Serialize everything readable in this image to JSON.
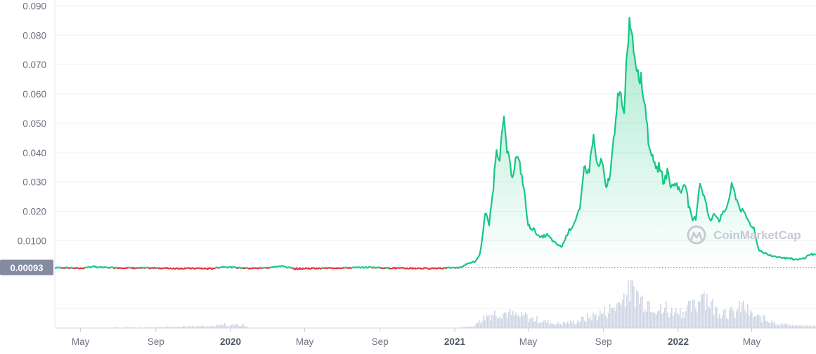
{
  "watermark": {
    "text": "CoinMarketCap",
    "icon": "coinmarketcap-logo-icon"
  },
  "colors": {
    "line_up": "#16c784",
    "line_down": "#ea3943",
    "area_fill": "#16c784",
    "volume": "#cfd6e4",
    "price_tag_bg": "#858ca2",
    "grid": "#eef0f3"
  },
  "current_price_label": "0.00093",
  "chart_data": {
    "type": "area",
    "title": "",
    "xlabel": "",
    "ylabel": "",
    "ylim": [
      -0.003,
      0.092
    ],
    "y_ticks": [
      "0.0100",
      "0.020",
      "0.030",
      "0.040",
      "0.050",
      "0.060",
      "0.070",
      "0.080",
      "0.090"
    ],
    "y_tick_values": [
      0.01,
      0.02,
      0.03,
      0.04,
      0.05,
      0.06,
      0.07,
      0.08,
      0.09
    ],
    "x_range": [
      "2019-03-20",
      "2022-08-14"
    ],
    "x_ticks": [
      {
        "label": "May",
        "date": "2019-05-01",
        "bold": false
      },
      {
        "label": "Sep",
        "date": "2019-09-01",
        "bold": false
      },
      {
        "label": "2020",
        "date": "2020-01-01",
        "bold": true
      },
      {
        "label": "May",
        "date": "2020-05-01",
        "bold": false
      },
      {
        "label": "Sep",
        "date": "2020-09-01",
        "bold": false
      },
      {
        "label": "2021",
        "date": "2021-01-01",
        "bold": true
      },
      {
        "label": "May",
        "date": "2021-05-01",
        "bold": false
      },
      {
        "label": "Sep",
        "date": "2021-09-01",
        "bold": false
      },
      {
        "label": "2022",
        "date": "2022-01-01",
        "bold": true
      },
      {
        "label": "May",
        "date": "2022-05-01",
        "bold": false
      }
    ],
    "grid": true,
    "reference_line": {
      "value": 0.00093,
      "style": "dotted"
    },
    "series": [
      {
        "points": [
          [
            "2019-03-20",
            0.0009
          ],
          [
            "2019-04-10",
            0.0008
          ],
          [
            "2019-05-01",
            0.0006
          ],
          [
            "2019-05-20",
            0.0012
          ],
          [
            "2019-06-10",
            0.0009
          ],
          [
            "2019-07-01",
            0.0008
          ],
          [
            "2019-08-01",
            0.0007
          ],
          [
            "2019-09-01",
            0.0007
          ],
          [
            "2019-10-01",
            0.0006
          ],
          [
            "2019-11-01",
            0.0006
          ],
          [
            "2019-12-01",
            0.0005
          ],
          [
            "2019-12-20",
            0.0012
          ],
          [
            "2020-01-15",
            0.0008
          ],
          [
            "2020-02-10",
            0.0006
          ],
          [
            "2020-03-05",
            0.0009
          ],
          [
            "2020-03-25",
            0.0014
          ],
          [
            "2020-04-15",
            0.0005
          ],
          [
            "2020-05-15",
            0.0006
          ],
          [
            "2020-06-15",
            0.0007
          ],
          [
            "2020-07-15",
            0.0008
          ],
          [
            "2020-08-15",
            0.001
          ],
          [
            "2020-09-15",
            0.0007
          ],
          [
            "2020-10-15",
            0.0006
          ],
          [
            "2020-11-15",
            0.0006
          ],
          [
            "2020-12-15",
            0.0007
          ],
          [
            "2021-01-10",
            0.0009
          ],
          [
            "2021-01-25",
            0.0025
          ],
          [
            "2021-02-05",
            0.003
          ],
          [
            "2021-02-12",
            0.006
          ],
          [
            "2021-02-20",
            0.02
          ],
          [
            "2021-02-26",
            0.015
          ],
          [
            "2021-03-05",
            0.028
          ],
          [
            "2021-03-10",
            0.042
          ],
          [
            "2021-03-15",
            0.038
          ],
          [
            "2021-03-22",
            0.051
          ],
          [
            "2021-03-28",
            0.04
          ],
          [
            "2021-04-05",
            0.032
          ],
          [
            "2021-04-12",
            0.039
          ],
          [
            "2021-04-18",
            0.035
          ],
          [
            "2021-04-24",
            0.028
          ],
          [
            "2021-05-01",
            0.015
          ],
          [
            "2021-05-10",
            0.014
          ],
          [
            "2021-05-20",
            0.011
          ],
          [
            "2021-06-01",
            0.012
          ],
          [
            "2021-06-15",
            0.009
          ],
          [
            "2021-06-25",
            0.008
          ],
          [
            "2021-07-05",
            0.013
          ],
          [
            "2021-07-15",
            0.016
          ],
          [
            "2021-07-25",
            0.021
          ],
          [
            "2021-08-01",
            0.036
          ],
          [
            "2021-08-08",
            0.033
          ],
          [
            "2021-08-15",
            0.046
          ],
          [
            "2021-08-22",
            0.035
          ],
          [
            "2021-08-30",
            0.037
          ],
          [
            "2021-09-05",
            0.027
          ],
          [
            "2021-09-12",
            0.033
          ],
          [
            "2021-09-18",
            0.045
          ],
          [
            "2021-09-22",
            0.056
          ],
          [
            "2021-09-28",
            0.06
          ],
          [
            "2021-10-04",
            0.052
          ],
          [
            "2021-10-10",
            0.078
          ],
          [
            "2021-10-15",
            0.086
          ],
          [
            "2021-10-20",
            0.076
          ],
          [
            "2021-10-25",
            0.07
          ],
          [
            "2021-10-30",
            0.067
          ],
          [
            "2021-11-05",
            0.06
          ],
          [
            "2021-11-10",
            0.053
          ],
          [
            "2021-11-15",
            0.04
          ],
          [
            "2021-11-20",
            0.041
          ],
          [
            "2021-11-25",
            0.033
          ],
          [
            "2021-12-01",
            0.036
          ],
          [
            "2021-12-08",
            0.03
          ],
          [
            "2021-12-15",
            0.034
          ],
          [
            "2021-12-20",
            0.028
          ],
          [
            "2021-12-28",
            0.03
          ],
          [
            "2022-01-05",
            0.026
          ],
          [
            "2022-01-12",
            0.031
          ],
          [
            "2022-01-18",
            0.022
          ],
          [
            "2022-01-24",
            0.017
          ],
          [
            "2022-01-30",
            0.018
          ],
          [
            "2022-02-05",
            0.03
          ],
          [
            "2022-02-10",
            0.027
          ],
          [
            "2022-02-15",
            0.023
          ],
          [
            "2022-02-22",
            0.016
          ],
          [
            "2022-03-01",
            0.02
          ],
          [
            "2022-03-08",
            0.017
          ],
          [
            "2022-03-15",
            0.019
          ],
          [
            "2022-03-22",
            0.022
          ],
          [
            "2022-03-30",
            0.029
          ],
          [
            "2022-04-05",
            0.025
          ],
          [
            "2022-04-12",
            0.021
          ],
          [
            "2022-04-20",
            0.019
          ],
          [
            "2022-04-28",
            0.016
          ],
          [
            "2022-05-05",
            0.014
          ],
          [
            "2022-05-12",
            0.007
          ],
          [
            "2022-05-20",
            0.006
          ],
          [
            "2022-06-01",
            0.005
          ],
          [
            "2022-06-15",
            0.0045
          ],
          [
            "2022-06-30",
            0.004
          ],
          [
            "2022-07-15",
            0.0035
          ],
          [
            "2022-07-25",
            0.004
          ],
          [
            "2022-08-05",
            0.0055
          ],
          [
            "2022-08-14",
            0.0053
          ]
        ]
      }
    ],
    "volume": {
      "scale_max": 1.0,
      "points": [
        [
          "2019-03-20",
          0.0
        ],
        [
          "2019-09-15",
          0.02
        ],
        [
          "2020-01-20",
          0.08
        ],
        [
          "2020-02-01",
          0.0
        ],
        [
          "2020-12-31",
          0.0
        ],
        [
          "2021-02-01",
          0.05
        ],
        [
          "2021-02-20",
          0.3
        ],
        [
          "2021-03-15",
          0.4
        ],
        [
          "2021-04-10",
          0.3
        ],
        [
          "2021-05-15",
          0.2
        ],
        [
          "2021-06-15",
          0.1
        ],
        [
          "2021-07-15",
          0.15
        ],
        [
          "2021-08-15",
          0.3
        ],
        [
          "2021-09-05",
          0.4
        ],
        [
          "2021-09-25",
          0.6
        ],
        [
          "2021-10-10",
          0.9
        ],
        [
          "2021-10-18",
          1.0
        ],
        [
          "2021-10-30",
          0.7
        ],
        [
          "2021-11-15",
          0.65
        ],
        [
          "2021-12-05",
          0.4
        ],
        [
          "2022-01-05",
          0.4
        ],
        [
          "2022-02-01",
          0.55
        ],
        [
          "2022-02-08",
          0.95
        ],
        [
          "2022-03-01",
          0.45
        ],
        [
          "2022-04-01",
          0.35
        ],
        [
          "2022-04-15",
          0.55
        ],
        [
          "2022-05-01",
          0.3
        ],
        [
          "2022-06-15",
          0.1
        ],
        [
          "2022-07-15",
          0.05
        ],
        [
          "2022-08-14",
          0.05
        ]
      ]
    }
  }
}
